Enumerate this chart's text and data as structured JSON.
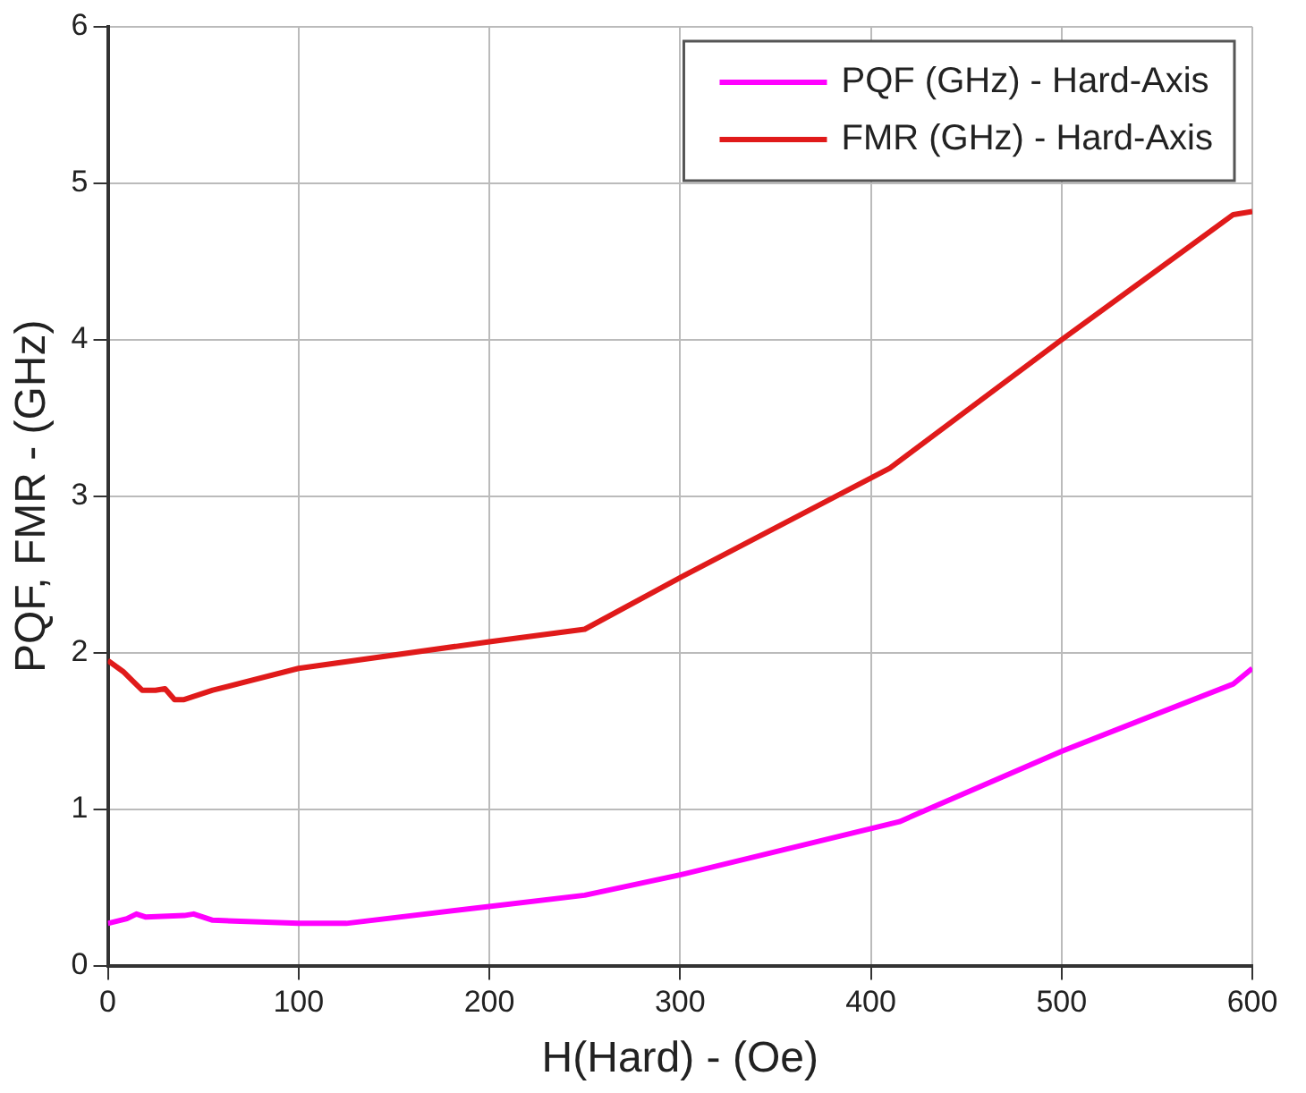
{
  "chart_data": {
    "type": "line",
    "xlabel": "H(Hard) - (Oe)",
    "ylabel": "PQF, FMR - (GHz)",
    "xlim": [
      0,
      600
    ],
    "xticks": [
      0,
      100,
      200,
      300,
      400,
      500,
      600
    ],
    "ylim": [
      0,
      6
    ],
    "yticks": [
      0,
      1,
      2,
      3,
      4,
      5,
      6
    ],
    "grid": true,
    "legend": "top right",
    "marker": "none",
    "line_style": "solid",
    "series": [
      {
        "name": "PQF (GHz) - Hard-Axis",
        "color": "#ff00ff",
        "x": [
          0,
          10,
          15,
          20,
          40,
          45,
          55,
          100,
          125,
          250,
          300,
          415,
          500,
          590,
          600
        ],
        "values": [
          0.27,
          0.3,
          0.33,
          0.31,
          0.32,
          0.33,
          0.29,
          0.27,
          0.27,
          0.45,
          0.58,
          0.92,
          1.37,
          1.8,
          1.9
        ]
      },
      {
        "name": "FMR (GHz) - Hard-Axis",
        "color": "#e01a1a",
        "x": [
          0,
          8,
          18,
          25,
          30,
          35,
          40,
          55,
          100,
          200,
          250,
          300,
          410,
          500,
          590,
          600
        ],
        "values": [
          1.95,
          1.88,
          1.76,
          1.76,
          1.77,
          1.7,
          1.7,
          1.76,
          1.9,
          2.07,
          2.15,
          2.48,
          3.18,
          4.0,
          4.8,
          4.82
        ]
      }
    ]
  }
}
